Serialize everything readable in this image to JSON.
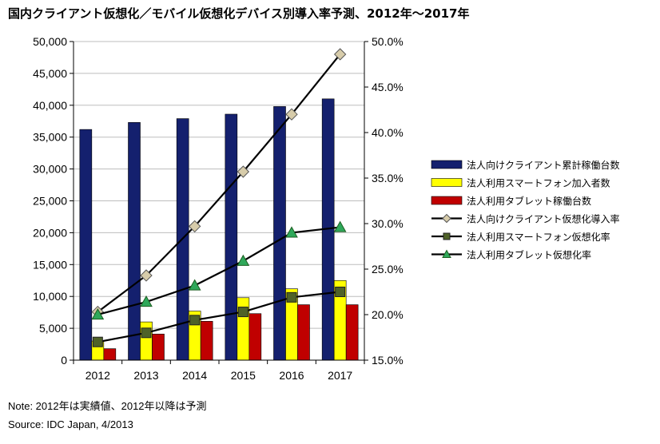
{
  "title": "国内クライアント仮想化／モバイル仮想化デバイス別導入率予測、2012年～2017年",
  "note": "Note: 2012年は実績値、2012年以降は予測",
  "source": "Source: IDC Japan, 4/2013",
  "colors": {
    "clients": "#14206e",
    "smartphone": "#ffff00",
    "tablet": "#c00000",
    "client_rate_marker": "#d7ccaa",
    "smartphone_rate_marker": "#4f6228",
    "tablet_rate_marker": "#2fa85a"
  },
  "chart_data": {
    "type": "bar",
    "categories": [
      "2012",
      "2013",
      "2014",
      "2015",
      "2016",
      "2017"
    ],
    "y_left": {
      "lim": [
        0,
        50000
      ],
      "ticks": [
        "0",
        "5,000",
        "10,000",
        "15,000",
        "20,000",
        "25,000",
        "30,000",
        "35,000",
        "40,000",
        "45,000",
        "50,000"
      ]
    },
    "y_right": {
      "lim": [
        15,
        50
      ],
      "ticks": [
        "15.0%",
        "20.0%",
        "25.0%",
        "30.0%",
        "35.0%",
        "40.0%",
        "45.0%",
        "50.0%"
      ]
    },
    "grid": "horizontal",
    "legend_position": "right",
    "series": [
      {
        "name": "法人向けクライアント累計稼働台数",
        "kind": "bar",
        "axis": "left",
        "values": [
          36200,
          37300,
          37900,
          38600,
          39800,
          41000
        ]
      },
      {
        "name": "法人利用スマートフォン加入者数",
        "kind": "bar",
        "axis": "left",
        "values": [
          3000,
          6000,
          7700,
          9800,
          11200,
          12500
        ]
      },
      {
        "name": "法人利用タブレット稼働台数",
        "kind": "bar",
        "axis": "left",
        "values": [
          1800,
          4100,
          6100,
          7300,
          8700,
          8700
        ]
      },
      {
        "name": "法人向けクライアント仮想化導入率",
        "kind": "line",
        "axis": "right",
        "marker": "diamond",
        "values": [
          20.3,
          24.3,
          29.7,
          35.7,
          42.0,
          48.6
        ]
      },
      {
        "name": "法人利用スマートフォン仮想化率",
        "kind": "line",
        "axis": "right",
        "marker": "square",
        "values": [
          17.0,
          18.0,
          19.4,
          20.3,
          21.9,
          22.5
        ]
      },
      {
        "name": "法人利用タブレット仮想化率",
        "kind": "line",
        "axis": "right",
        "marker": "triangle",
        "values": [
          20.0,
          21.4,
          23.2,
          25.9,
          29.0,
          29.6
        ]
      }
    ]
  }
}
